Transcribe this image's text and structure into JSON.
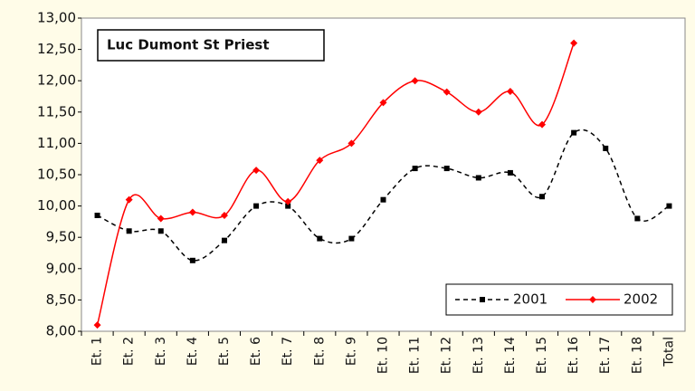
{
  "chart_data": {
    "type": "line",
    "title": "Luc Dumont St Priest",
    "categories": [
      "Et. 1",
      "Et. 2",
      "Et. 3",
      "Et. 4",
      "Et. 5",
      "Et. 6",
      "Et. 7",
      "Et. 8",
      "Et. 9",
      "Et. 10",
      "Et. 11",
      "Et. 12",
      "Et. 13",
      "Et. 14",
      "Et. 15",
      "Et. 16",
      "Et. 17",
      "Et. 18",
      "Total"
    ],
    "series": [
      {
        "name": "2001",
        "color": "#000000",
        "dash": true,
        "marker": "square",
        "values": [
          9.85,
          9.6,
          9.6,
          9.13,
          9.45,
          10.0,
          10.0,
          9.48,
          9.48,
          10.1,
          10.6,
          10.6,
          10.45,
          10.53,
          10.15,
          11.17,
          10.92,
          9.8,
          10.0
        ]
      },
      {
        "name": "2002",
        "color": "#ff0000",
        "dash": false,
        "marker": "diamond",
        "values": [
          8.1,
          10.1,
          9.8,
          9.9,
          9.85,
          10.57,
          10.07,
          10.73,
          11.0,
          11.65,
          12.0,
          11.82,
          11.5,
          11.83,
          11.3,
          12.6,
          null,
          null,
          null
        ]
      }
    ],
    "ylim": [
      8,
      13
    ],
    "yticks": [
      {
        "value": 8,
        "label": "8,00"
      },
      {
        "value": 8.5,
        "label": "8,50"
      },
      {
        "value": 9,
        "label": "9,00"
      },
      {
        "value": 9.5,
        "label": "9,50"
      },
      {
        "value": 10,
        "label": "10,00"
      },
      {
        "value": 10.5,
        "label": "10,50"
      },
      {
        "value": 11,
        "label": "11,00"
      },
      {
        "value": 11.5,
        "label": "11,50"
      },
      {
        "value": 12,
        "label": "12,00"
      },
      {
        "value": 12.5,
        "label": "12,50"
      },
      {
        "value": 13,
        "label": "13,00"
      }
    ],
    "grid": false,
    "smooth": true,
    "legend": "lower right"
  }
}
